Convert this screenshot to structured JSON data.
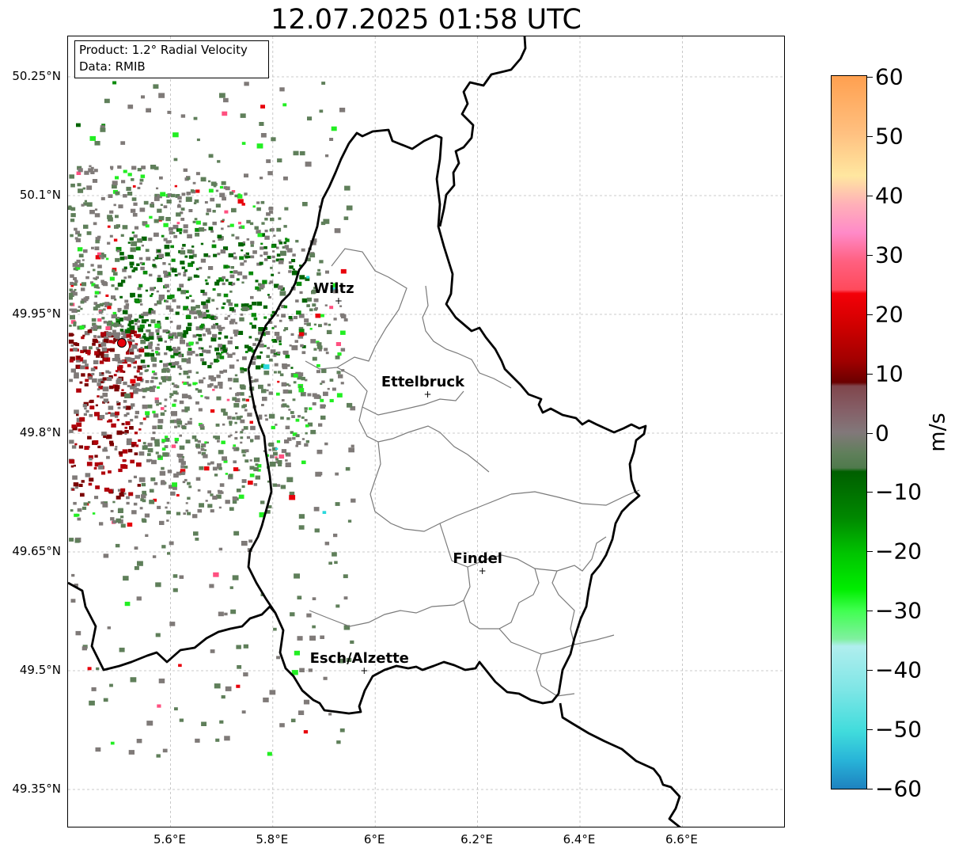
{
  "title": "12.07.2025 01:58 UTC",
  "infobox": {
    "product": "Product: 1.2° Radial Velocity",
    "data": "Data: RMIB"
  },
  "axes": {
    "x_ticks": [
      "5.6°E",
      "5.8°E",
      "6°E",
      "6.2°E",
      "6.4°E",
      "6.6°E"
    ],
    "y_ticks": [
      "50.25°N",
      "50.1°N",
      "49.95°N",
      "49.8°N",
      "49.65°N",
      "49.5°N",
      "49.35°N"
    ],
    "lon_range": [
      5.4,
      6.8
    ],
    "lat_range": [
      49.3,
      50.3
    ],
    "grid": true
  },
  "cities": [
    {
      "name": "Wiltz",
      "lon": 5.93,
      "lat": 49.966
    },
    {
      "name": "Ettelbruck",
      "lon": 6.104,
      "lat": 49.848
    },
    {
      "name": "Findel",
      "lon": 6.211,
      "lat": 49.625
    },
    {
      "name": "Esch/Alzette",
      "lon": 5.98,
      "lat": 49.499
    }
  ],
  "radar_site": {
    "lon": 5.505,
    "lat": 49.914
  },
  "colorbar": {
    "label": "m/s",
    "min": -60,
    "max": 60,
    "ticks": [
      "60",
      "50",
      "40",
      "30",
      "20",
      "10",
      "0",
      "−10",
      "−20",
      "−30",
      "−40",
      "−50",
      "−60"
    ],
    "colors": {
      "strong_away": "#e8000b",
      "weak_away": "#7a0000",
      "near_zero": "#7f7a78",
      "weak_toward": "#006400",
      "strong_toward": "#22ee22",
      "extreme_toward": "#2ad8dc",
      "extreme_away": "#ffa050"
    }
  }
}
